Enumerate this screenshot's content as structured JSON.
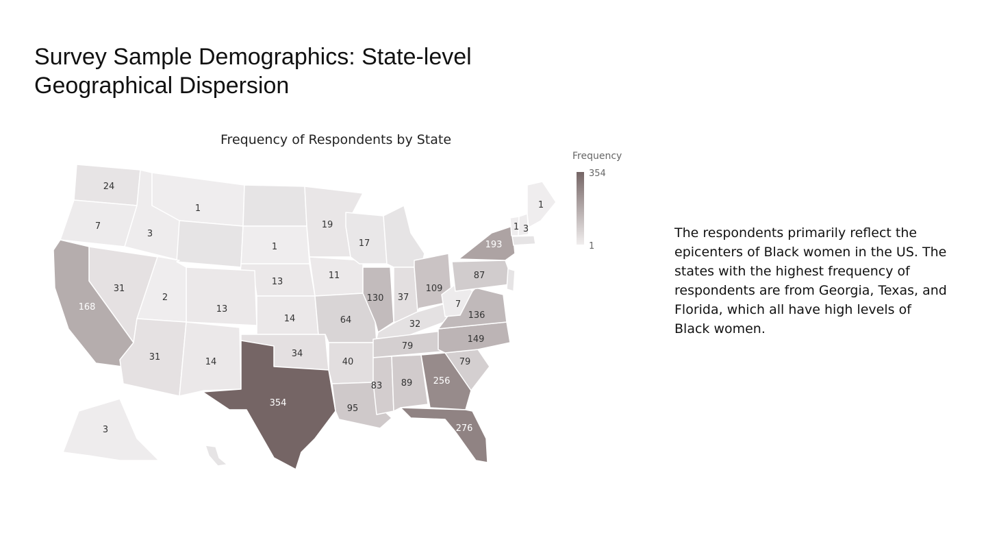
{
  "slide": {
    "title": "Survey Sample Demographics: State-level Geographical Dispersion",
    "description": "The respondents primarily reflect the epicenters of Black women in the US. The states with the highest frequency of respondents are from Georgia, Texas, and Florida, which all have high levels of Black women."
  },
  "map": {
    "title": "Frequency of Respondents by State",
    "legend": {
      "title": "Frequency",
      "max": "354",
      "min": "1"
    },
    "colors": {
      "low": "#efedee",
      "high": "#756565",
      "border": "#ffffff",
      "dark_label": "#ffffff",
      "light_label": "#333333"
    },
    "states": [
      {
        "code": "WA",
        "value": 24
      },
      {
        "code": "OR",
        "value": 7
      },
      {
        "code": "ID",
        "value": 3
      },
      {
        "code": "MT",
        "value": 1
      },
      {
        "code": "CA",
        "value": 168
      },
      {
        "code": "NV",
        "value": 31
      },
      {
        "code": "UT",
        "value": 2
      },
      {
        "code": "AZ",
        "value": 31
      },
      {
        "code": "NM",
        "value": 14
      },
      {
        "code": "CO",
        "value": 13
      },
      {
        "code": "SD",
        "value": 1
      },
      {
        "code": "NE",
        "value": 13
      },
      {
        "code": "KS",
        "value": 14
      },
      {
        "code": "OK",
        "value": 34
      },
      {
        "code": "TX",
        "value": 354
      },
      {
        "code": "MN",
        "value": 19
      },
      {
        "code": "IA",
        "value": 11
      },
      {
        "code": "MO",
        "value": 64
      },
      {
        "code": "AR",
        "value": 40
      },
      {
        "code": "LA",
        "value": 95
      },
      {
        "code": "WI",
        "value": 17
      },
      {
        "code": "IL",
        "value": 130
      },
      {
        "code": "IN",
        "value": 37
      },
      {
        "code": "OH",
        "value": 109
      },
      {
        "code": "KY",
        "value": 32
      },
      {
        "code": "TN",
        "value": 79
      },
      {
        "code": "MS",
        "value": 83
      },
      {
        "code": "AL",
        "value": 89
      },
      {
        "code": "GA",
        "value": 256
      },
      {
        "code": "FL",
        "value": 276
      },
      {
        "code": "SC",
        "value": 79
      },
      {
        "code": "NC",
        "value": 149
      },
      {
        "code": "VA",
        "value": 136
      },
      {
        "code": "WV",
        "value": 7
      },
      {
        "code": "PA",
        "value": 87
      },
      {
        "code": "NY",
        "value": 193
      },
      {
        "code": "VT",
        "value": 1
      },
      {
        "code": "NH",
        "value": 3
      },
      {
        "code": "ME",
        "value": 1
      },
      {
        "code": "AK",
        "value": 3
      }
    ]
  }
}
